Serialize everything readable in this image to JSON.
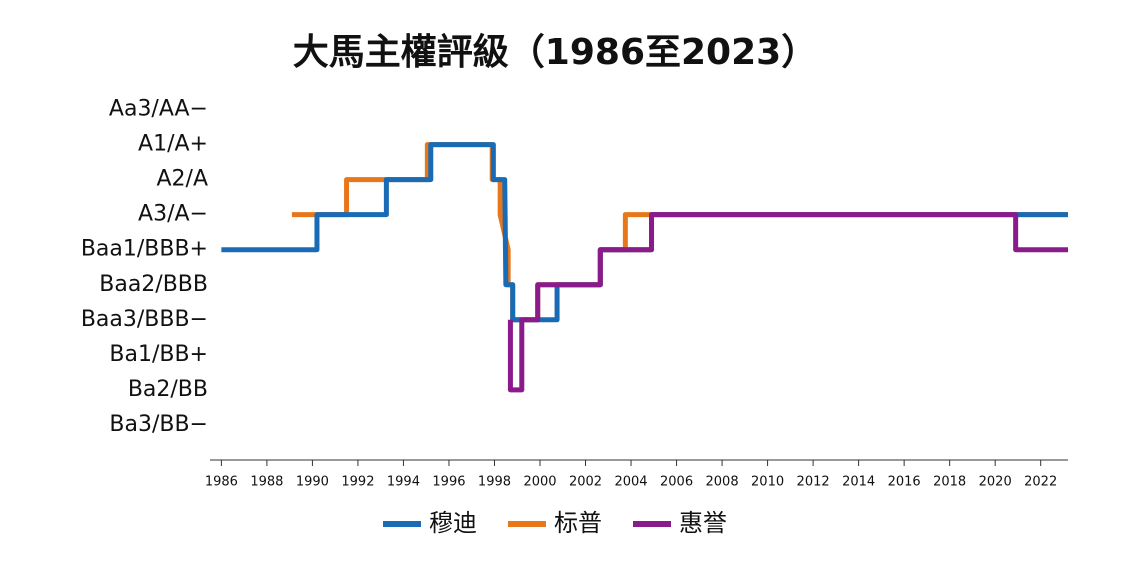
{
  "chart_data": {
    "type": "line",
    "title": "大馬主權評級（1986至2023）",
    "xlim": [
      1985.5,
      2023.2
    ],
    "xticks": [
      1986,
      1988,
      1990,
      1992,
      1994,
      1996,
      1998,
      2000,
      2002,
      2004,
      2006,
      2008,
      2010,
      2012,
      2014,
      2016,
      2018,
      2020,
      2022
    ],
    "ylim": [
      0,
      10.3
    ],
    "yticks": [
      {
        "value": 1,
        "label": "Ba3/BB−"
      },
      {
        "value": 2,
        "label": "Ba2/BB"
      },
      {
        "value": 3,
        "label": "Ba1/BB+"
      },
      {
        "value": 4,
        "label": "Baa3/BBB−"
      },
      {
        "value": 5,
        "label": "Baa2/BBB"
      },
      {
        "value": 6,
        "label": "Baa1/BBB+"
      },
      {
        "value": 7,
        "label": "A3/A−"
      },
      {
        "value": 8,
        "label": "A2/A"
      },
      {
        "value": 9,
        "label": "A1/A+"
      },
      {
        "value": 10,
        "label": "Aa3/AA−"
      }
    ],
    "series": [
      {
        "name": "标普",
        "color": "#e8761a",
        "x": [
          1989.1,
          1991.5,
          1991.5,
          1995.05,
          1995.05,
          1997.9,
          1997.9,
          1998.25,
          1998.25,
          1998.6,
          1998.6,
          1998.8,
          1998.8,
          1999.9,
          1999.9,
          2002.65,
          2002.65,
          2003.75,
          2003.75,
          2023.2
        ],
        "values": [
          7,
          7,
          8,
          8,
          9,
          9,
          8,
          8,
          7,
          6,
          5,
          5,
          4,
          4,
          5,
          5,
          6,
          6,
          7,
          7
        ]
      },
      {
        "name": "穆迪",
        "color": "#1a6bb5",
        "x": [
          1986,
          1990.2,
          1990.2,
          1993.25,
          1993.25,
          1995.2,
          1995.2,
          1997.95,
          1997.95,
          1998.45,
          1998.5,
          1998.8,
          1998.8,
          2000.75,
          2000.75,
          2002.65,
          2002.65,
          2004.9,
          2004.9,
          2023.2
        ],
        "values": [
          6,
          6,
          7,
          7,
          8,
          8,
          9,
          9,
          8,
          8,
          5,
          5,
          4,
          4,
          5,
          5,
          6,
          6,
          7,
          7
        ]
      },
      {
        "name": "惠誉",
        "color": "#8b1a8a",
        "x": [
          1998.7,
          1998.7,
          1999.2,
          1999.2,
          1999.9,
          1999.9,
          2002.65,
          2002.65,
          2004.9,
          2004.9,
          2020.9,
          2020.9,
          2023.2
        ],
        "values": [
          4,
          2,
          2,
          4,
          4,
          5,
          5,
          6,
          6,
          7,
          7,
          6,
          6
        ]
      }
    ]
  }
}
